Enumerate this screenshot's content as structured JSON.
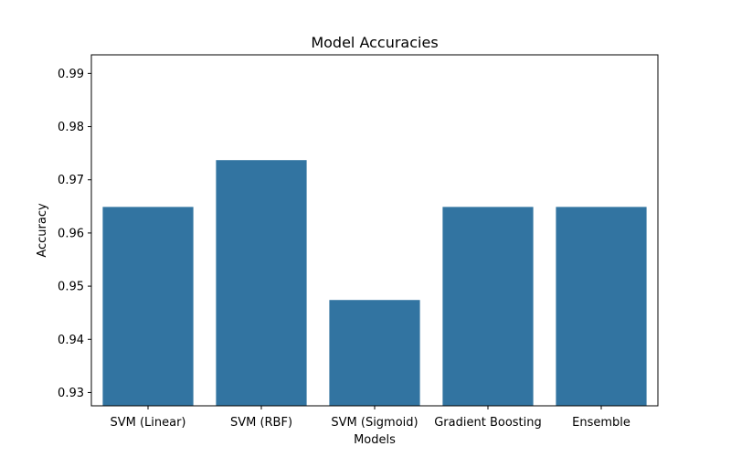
{
  "chart_data": {
    "type": "bar",
    "title": "Model Accuracies",
    "xlabel": "Models",
    "ylabel": "Accuracy",
    "categories": [
      "SVM (Linear)",
      "SVM (RBF)",
      "SVM (Sigmoid)",
      "Gradient Boosting",
      "Ensemble"
    ],
    "values": [
      0.9649,
      0.9737,
      0.9474,
      0.9649,
      0.9649
    ],
    "ylim": [
      0.9275,
      0.9935
    ],
    "yticks": [
      "0.93",
      "0.94",
      "0.95",
      "0.96",
      "0.97",
      "0.98",
      "0.99"
    ],
    "bar_color": "#3274a1",
    "grid": false,
    "legend": "none"
  }
}
